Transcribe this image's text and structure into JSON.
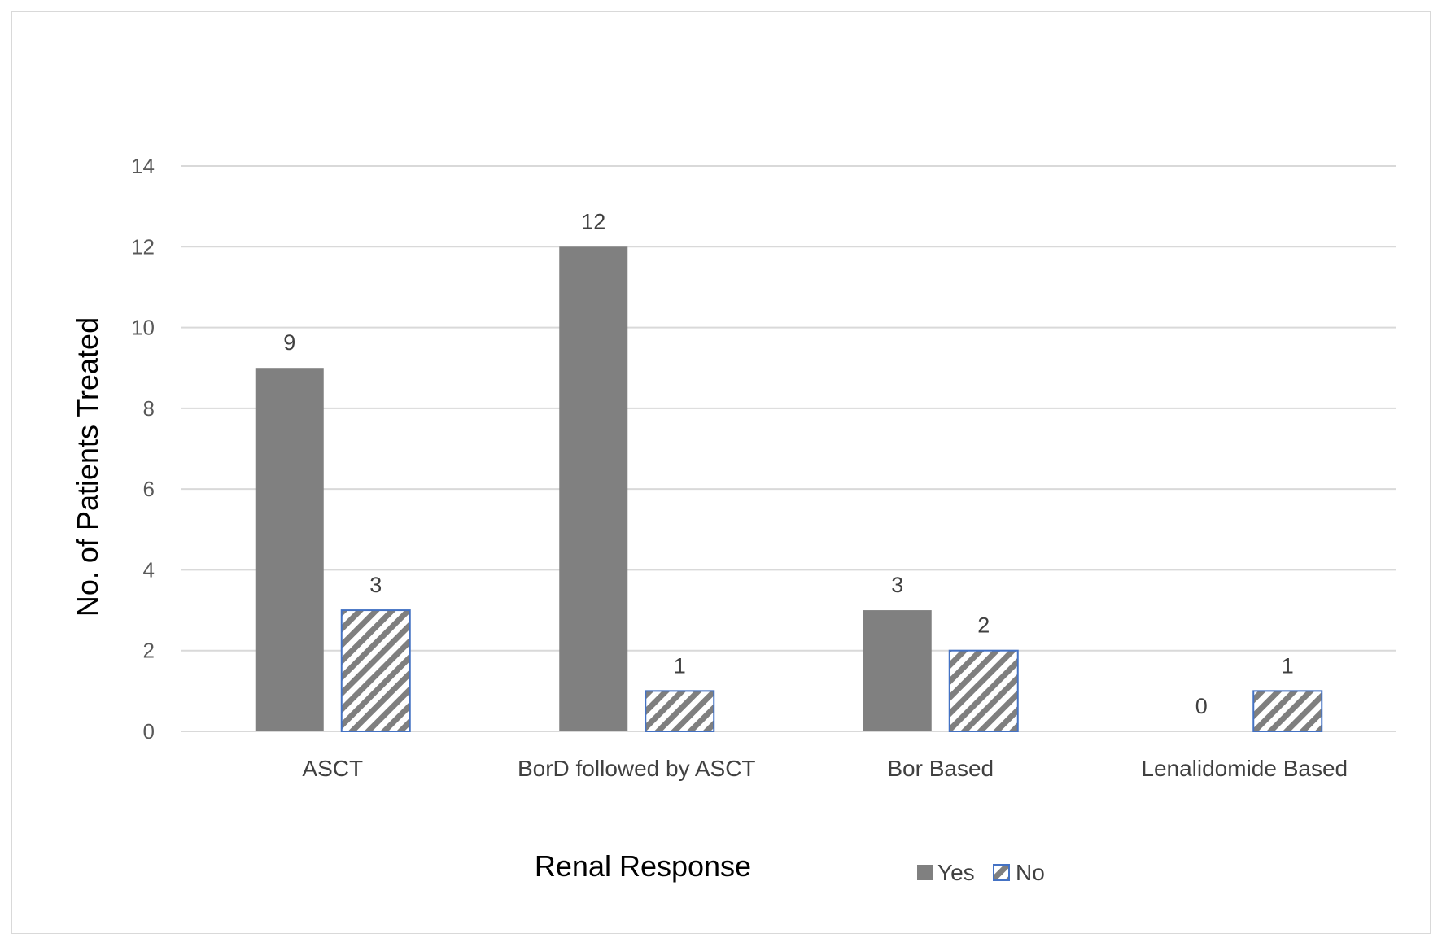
{
  "chart_data": {
    "type": "bar",
    "categories": [
      "ASCT",
      "BorD followed by ASCT",
      "Bor Based",
      "Lenalidomide Based"
    ],
    "series": [
      {
        "name": "Yes",
        "values": [
          9,
          12,
          3,
          0
        ],
        "color": "#808080",
        "fill": "solid"
      },
      {
        "name": "No",
        "values": [
          3,
          1,
          2,
          1
        ],
        "color": "#4472c4",
        "fill": "diagonal-hatch"
      }
    ],
    "xlabel": "Renal Response",
    "ylabel": "No. of Patients Treated",
    "ylim": [
      0,
      14
    ],
    "yticks": [
      0,
      2,
      4,
      6,
      8,
      10,
      12,
      14
    ],
    "grid": true,
    "legend": "bottom",
    "data_labels": true
  }
}
